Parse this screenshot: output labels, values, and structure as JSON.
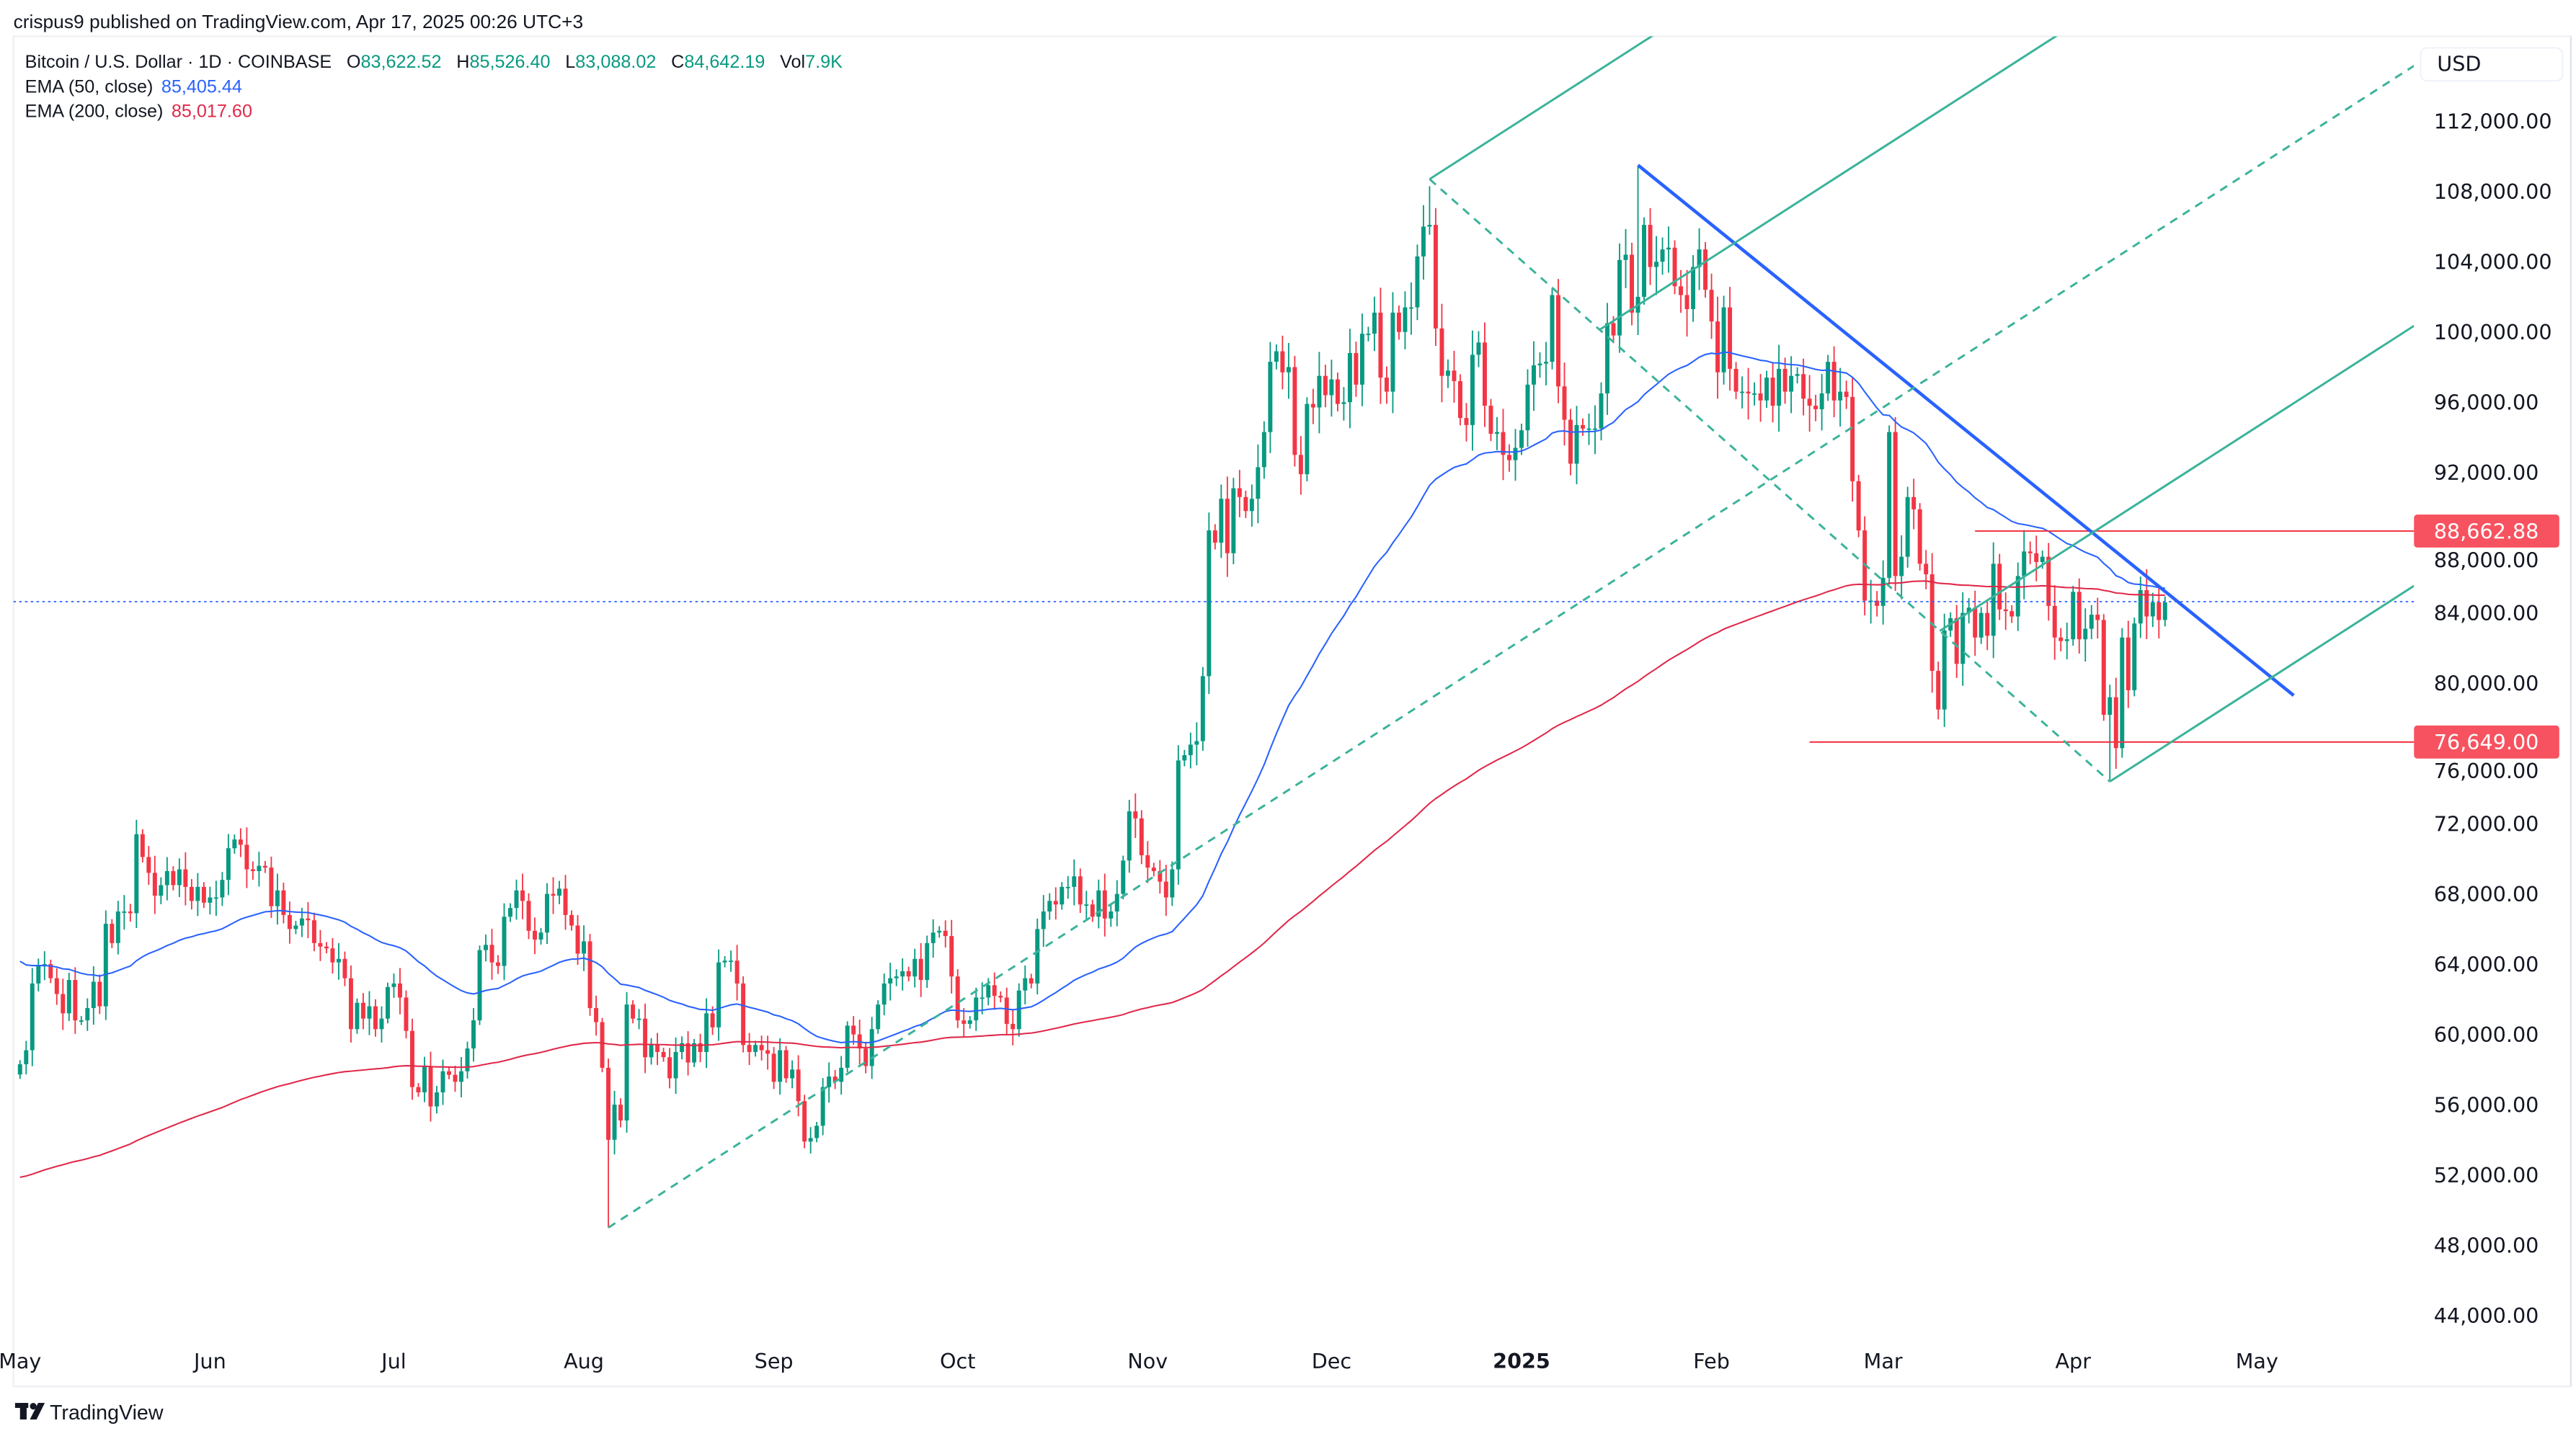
{
  "header": {
    "published": "crispus9 published on TradingView.com, Apr 17, 2025 00:26 UTC+3",
    "symbol": "Bitcoin / U.S. Dollar · 1D · COINBASE",
    "o_label": "O",
    "o": "83,622.52",
    "h_label": "H",
    "h": "85,526.40",
    "l_label": "L",
    "l": "83,088.02",
    "c_label": "C",
    "c": "84,642.19",
    "vol_label": "Vol",
    "vol": "7.9K",
    "ema50_label": "EMA (50, close)",
    "ema50": "85,405.44",
    "ema200_label": "EMA (200, close)",
    "ema200": "85,017.60"
  },
  "footer": {
    "brand": "TradingView"
  },
  "colors": {
    "up": "#089981",
    "down": "#F23645",
    "ema50": "#2962FF",
    "ema200": "#E0294A",
    "pitchfork": "#3BB39A",
    "trendline": "#2962FF",
    "hline": "#F23645"
  },
  "chart_data": {
    "type": "candlestick",
    "title": "Bitcoin / U.S. Dollar · 1D · COINBASE",
    "currency": "USD",
    "start_date": "2024-05-01",
    "unit": "USD thousands",
    "closes": [
      58.3,
      59.1,
      62.9,
      63.9,
      64.0,
      63.2,
      62.3,
      61.2,
      63.1,
      60.8,
      60.8,
      61.5,
      63.0,
      61.6,
      66.3,
      65.2,
      67.0,
      67.0,
      66.9,
      71.4,
      70.1,
      69.2,
      67.9,
      68.5,
      69.3,
      68.5,
      69.4,
      68.4,
      67.6,
      68.4,
      67.5,
      67.8,
      67.8,
      68.8,
      70.6,
      71.1,
      70.8,
      69.4,
      69.3,
      69.6,
      69.5,
      67.3,
      68.2,
      66.8,
      66.0,
      66.2,
      66.6,
      66.5,
      65.2,
      65.0,
      64.9,
      64.1,
      64.3,
      63.2,
      60.3,
      61.8,
      60.9,
      61.6,
      60.3,
      60.9,
      62.7,
      62.9,
      62.1,
      60.2,
      57.0,
      56.7,
      58.2,
      55.9,
      56.7,
      57.9,
      57.7,
      57.3,
      57.9,
      59.2,
      60.8,
      64.8,
      65.1,
      64.1,
      63.9,
      66.7,
      67.2,
      68.2,
      67.6,
      65.9,
      65.4,
      65.8,
      68.0,
      67.9,
      68.3,
      66.8,
      66.2,
      64.6,
      65.3,
      61.5,
      60.7,
      58.1,
      54.0,
      56.0,
      55.1,
      61.7,
      60.9,
      60.9,
      58.7,
      59.4,
      59.0,
      58.7,
      57.5,
      59.0,
      59.5,
      58.4,
      59.5,
      59.0,
      61.2,
      60.4,
      64.1,
      64.2,
      64.2,
      62.9,
      59.4,
      59.0,
      59.4,
      59.1,
      58.9,
      57.3,
      59.1,
      57.5,
      58.0,
      56.2,
      53.9,
      54.1,
      54.8,
      57.0,
      57.6,
      57.3,
      58.1,
      60.5,
      60.0,
      59.2,
      58.2,
      60.3,
      61.7,
      62.9,
      63.2,
      63.3,
      63.6,
      63.3,
      64.3,
      63.1,
      65.2,
      65.8,
      65.9,
      65.6,
      63.3,
      60.8,
      60.6,
      60.8,
      62.1,
      62.1,
      62.8,
      62.2,
      62.1,
      60.6,
      60.3,
      62.5,
      63.2,
      62.9,
      66.0,
      67.0,
      67.6,
      67.4,
      68.4,
      68.4,
      69.0,
      67.4,
      67.4,
      66.7,
      68.2,
      66.6,
      67.0,
      68.0,
      69.9,
      72.7,
      72.3,
      70.2,
      69.5,
      69.3,
      68.7,
      67.8,
      69.4,
      75.6,
      75.9,
      76.5,
      76.7,
      80.4,
      88.7,
      88.0,
      90.5,
      87.4,
      91.1,
      90.6,
      89.8,
      90.5,
      92.3,
      94.3,
      98.3,
      98.9,
      97.7,
      98.0,
      93.0,
      91.9,
      95.9,
      95.7,
      97.5,
      96.4,
      97.3,
      95.9,
      96.0,
      98.8,
      97.0,
      99.9,
      99.9,
      101.1,
      97.4,
      96.6,
      101.1,
      100.0,
      101.4,
      101.4,
      104.3,
      106.0,
      106.1,
      100.2,
      97.5,
      97.8,
      97.2,
      95.1,
      94.7,
      98.7,
      99.4,
      95.8,
      94.2,
      94.3,
      93.0,
      92.7,
      93.4,
      94.4,
      97.0,
      98.1,
      98.2,
      98.3,
      102.1,
      96.9,
      95.0,
      92.5,
      94.7,
      94.5,
      94.5,
      94.5,
      96.5,
      100.5,
      99.8,
      104.1,
      104.4,
      101.1,
      102.0,
      106.1,
      103.7,
      104.0,
      104.7,
      104.8,
      102.6,
      102.1,
      101.3,
      103.7,
      104.7,
      102.4,
      100.6,
      97.7,
      101.4,
      97.9,
      96.6,
      96.6,
      96.5,
      96.5,
      96.1,
      97.4,
      95.8,
      97.9,
      96.6,
      97.5,
      97.6,
      96.2,
      95.8,
      95.6,
      96.5,
      98.3,
      96.1,
      96.6,
      96.3,
      91.5,
      88.7,
      84.7,
      84.7,
      84.4,
      86.0,
      94.3,
      86.1,
      87.2,
      90.6,
      89.9,
      86.8,
      86.2,
      80.7,
      78.5,
      83.0,
      83.7,
      81.1,
      84.0,
      84.3,
      82.6,
      84.0,
      82.7,
      86.8,
      84.2,
      84.1,
      83.8,
      86.1,
      87.5,
      87.4,
      86.9,
      87.2,
      84.4,
      82.6,
      82.4,
      82.5,
      85.2,
      82.5,
      83.1,
      83.9,
      83.6,
      78.2,
      79.2,
      76.3,
      82.6,
      79.6,
      83.4,
      85.3,
      83.8,
      84.6,
      83.6,
      84.6
    ],
    "notable_wicks": [
      {
        "date": "2024-08-05",
        "low": 49.0
      },
      {
        "date": "2024-12-17",
        "high": 108.3
      },
      {
        "date": "2025-01-20",
        "high": 109.4
      },
      {
        "date": "2025-04-07",
        "low": 74.5
      }
    ],
    "ema_seed": {
      "ema50": 64.4,
      "ema200": 51.8
    },
    "ylim": [
      42000,
      116000
    ],
    "y_ticks": [
      "112,000.00",
      "108,000.00",
      "104,000.00",
      "100,000.00",
      "96,000.00",
      "92,000.00",
      "88,000.00",
      "84,000.00",
      "80,000.00",
      "76,000.00",
      "72,000.00",
      "68,000.00",
      "64,000.00",
      "60,000.00",
      "56,000.00",
      "52,000.00",
      "48,000.00",
      "44,000.00"
    ],
    "y_tick_values": [
      112000,
      108000,
      104000,
      100000,
      96000,
      92000,
      88000,
      84000,
      80000,
      76000,
      72000,
      68000,
      64000,
      60000,
      56000,
      52000,
      48000,
      44000
    ],
    "x_ticks": [
      {
        "label": "May",
        "date": "2024-05-01"
      },
      {
        "label": "Jun",
        "date": "2024-06-01"
      },
      {
        "label": "Jul",
        "date": "2024-07-01"
      },
      {
        "label": "Aug",
        "date": "2024-08-01"
      },
      {
        "label": "Sep",
        "date": "2024-09-01"
      },
      {
        "label": "Oct",
        "date": "2024-10-01"
      },
      {
        "label": "Nov",
        "date": "2024-11-01"
      },
      {
        "label": "Dec",
        "date": "2024-12-01"
      },
      {
        "label": "2025",
        "date": "2025-01-01",
        "bold": true
      },
      {
        "label": "Feb",
        "date": "2025-02-01"
      },
      {
        "label": "Mar",
        "date": "2025-03-01"
      },
      {
        "label": "Apr",
        "date": "2025-04-01"
      },
      {
        "label": "May",
        "date": "2025-05-01"
      }
    ],
    "x_end_date": "2025-06-02",
    "last_price": 84642.19,
    "price_labels": [
      {
        "value": 88662.88,
        "text": "88,662.88",
        "from": "2025-03-16"
      },
      {
        "value": 76649.0,
        "text": "76,649.00",
        "from": "2025-02-17"
      }
    ],
    "trendline": {
      "from": {
        "date": "2025-01-20",
        "price": 109500
      },
      "to": {
        "date": "2025-05-07",
        "price": 79300
      }
    },
    "pitchfork": {
      "a": {
        "date": "2024-08-05",
        "price": 49000
      },
      "b": {
        "date": "2024-12-17",
        "price": 108700
      },
      "c": {
        "date": "2025-04-07",
        "price": 74400
      }
    }
  }
}
